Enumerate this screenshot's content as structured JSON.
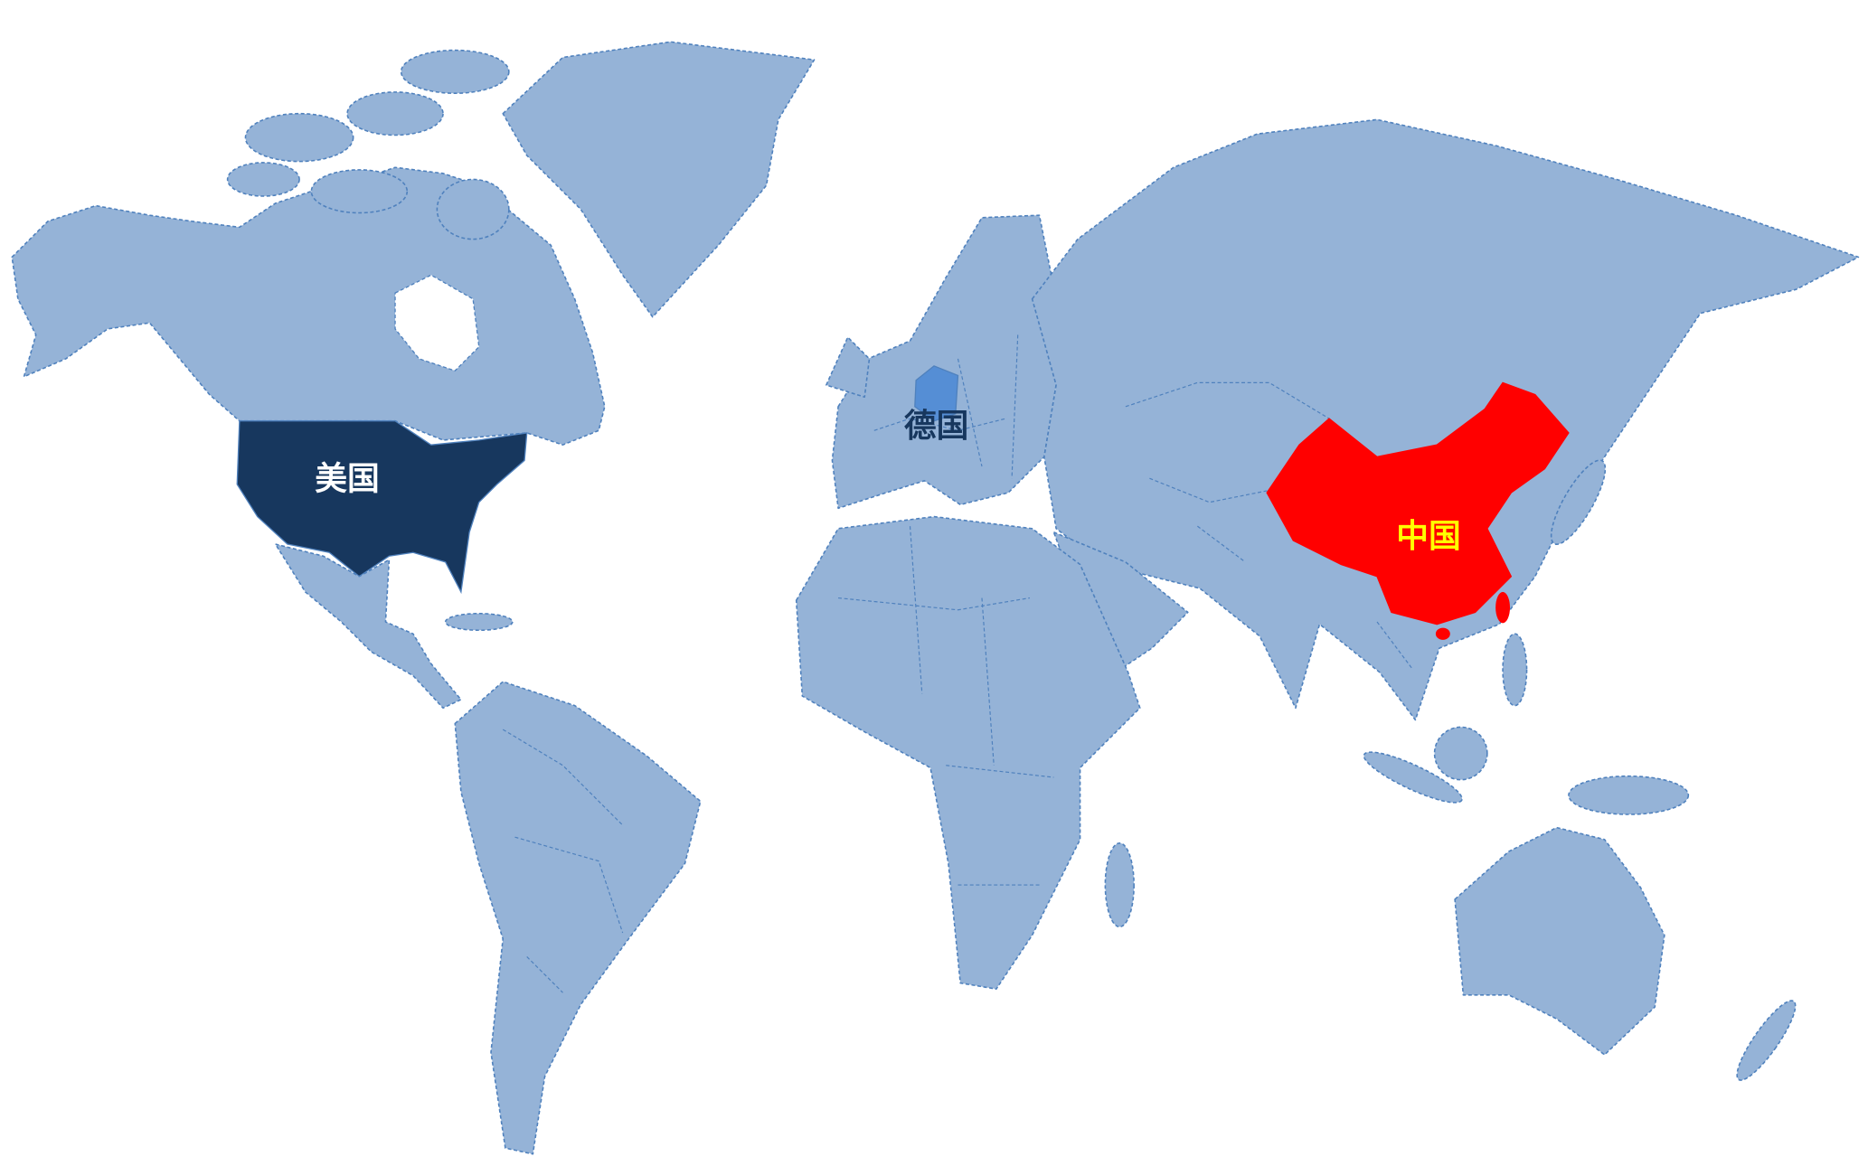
{
  "map": {
    "base_land_color": "#95b3d7",
    "border_color": "#4f81bd",
    "background_color": "#ffffff",
    "highlighted_countries": [
      {
        "id": "usa",
        "label": "美国",
        "fill": "#17375e",
        "label_color": "#ffffff"
      },
      {
        "id": "germany",
        "label": "德国",
        "fill": "#558ed5",
        "label_color": "#17375e"
      },
      {
        "id": "china",
        "label": "中国",
        "fill": "#ff0000",
        "label_color": "#ffff00"
      }
    ]
  }
}
